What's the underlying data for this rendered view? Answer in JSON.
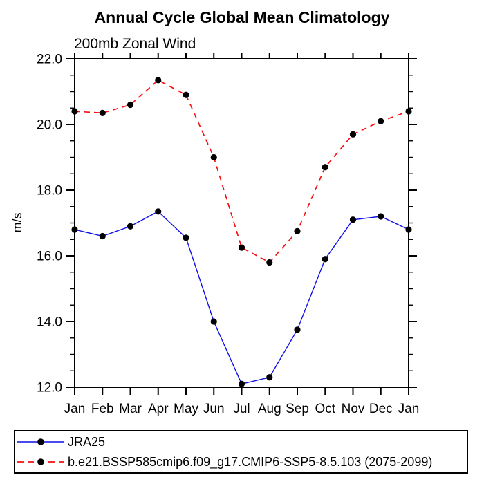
{
  "window": {
    "background": "#ffffff",
    "text_color": "#000000"
  },
  "chart_data": {
    "type": "line",
    "title": "Annual Cycle Global Mean Climatology",
    "subtitle": "200mb Zonal Wind",
    "ylabel": "m/s",
    "xlabel": "",
    "categories": [
      "Jan",
      "Feb",
      "Mar",
      "Apr",
      "May",
      "Jun",
      "Jul",
      "Aug",
      "Sep",
      "Oct",
      "Nov",
      "Dec",
      "Jan"
    ],
    "ylim": [
      12.0,
      22.0
    ],
    "ytick_labels": [
      "12.0",
      "14.0",
      "16.0",
      "18.0",
      "20.0",
      "22.0"
    ],
    "ytick_values": [
      12,
      14,
      16,
      18,
      20,
      22
    ],
    "ytick_minor_step": 0.5,
    "grid": false,
    "legend_position": "bottom-left-box",
    "frame_color": "#000000",
    "marker_color": "#000000",
    "series": [
      {
        "name": "JRA25",
        "color": "#0f0fe6",
        "style": "solid",
        "marker": "circle",
        "values": [
          16.8,
          16.6,
          16.9,
          17.35,
          16.55,
          14.0,
          12.1,
          12.3,
          13.75,
          15.9,
          17.1,
          17.2,
          16.8
        ]
      },
      {
        "name": "b.e21.BSSP585cmip6.f09_g17.CMIP6-SSP5-8.5.103 (2075-2099)",
        "color": "#f51111",
        "style": "dashed",
        "dash": "8 6",
        "marker": "circle",
        "values": [
          20.4,
          20.35,
          20.6,
          21.35,
          20.9,
          19.0,
          16.25,
          15.8,
          16.75,
          18.7,
          19.7,
          20.1,
          20.4
        ]
      }
    ]
  }
}
